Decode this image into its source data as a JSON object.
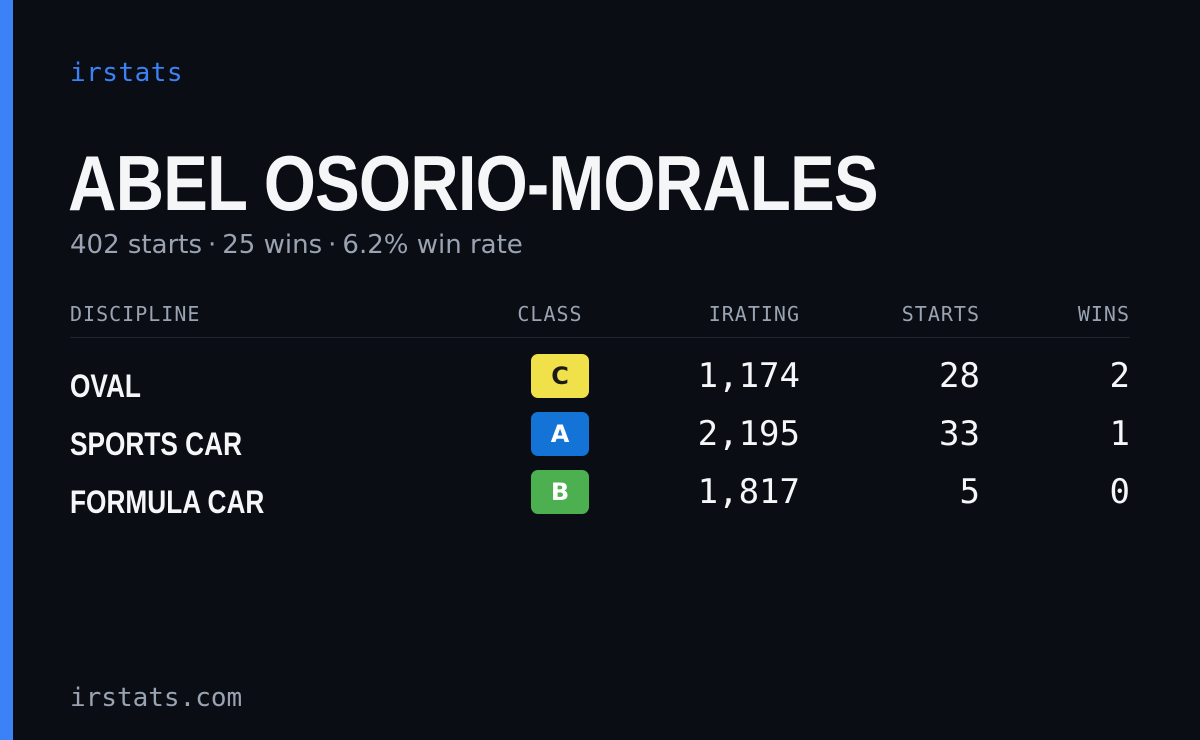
{
  "brand": "irstats",
  "driver": {
    "name": "ABEL OSORIO-MORALES",
    "starts_text": "402 starts",
    "wins_text": "25 wins",
    "win_rate_text": "6.2% win rate",
    "separator": "·"
  },
  "table": {
    "headers": {
      "discipline": "DISCIPLINE",
      "class": "CLASS",
      "irating": "IRATING",
      "starts": "STARTS",
      "wins": "WINS"
    },
    "rows": [
      {
        "discipline": "OVAL",
        "class": "C",
        "class_color": "#f0e04a",
        "class_text_color": "#1a1a1a",
        "irating": "1,174",
        "starts": "28",
        "wins": "2"
      },
      {
        "discipline": "SPORTS CAR",
        "class": "A",
        "class_color": "#1373d6",
        "class_text_color": "#ffffff",
        "irating": "2,195",
        "starts": "33",
        "wins": "1"
      },
      {
        "discipline": "FORMULA CAR",
        "class": "B",
        "class_color": "#4caf50",
        "class_text_color": "#ffffff",
        "irating": "1,817",
        "starts": "5",
        "wins": "0"
      }
    ]
  },
  "footer": "irstats.com",
  "colors": {
    "accent": "#3b82f6",
    "background": "#0a0d14",
    "text": "#f5f6f8",
    "muted": "#9aa3b2"
  }
}
